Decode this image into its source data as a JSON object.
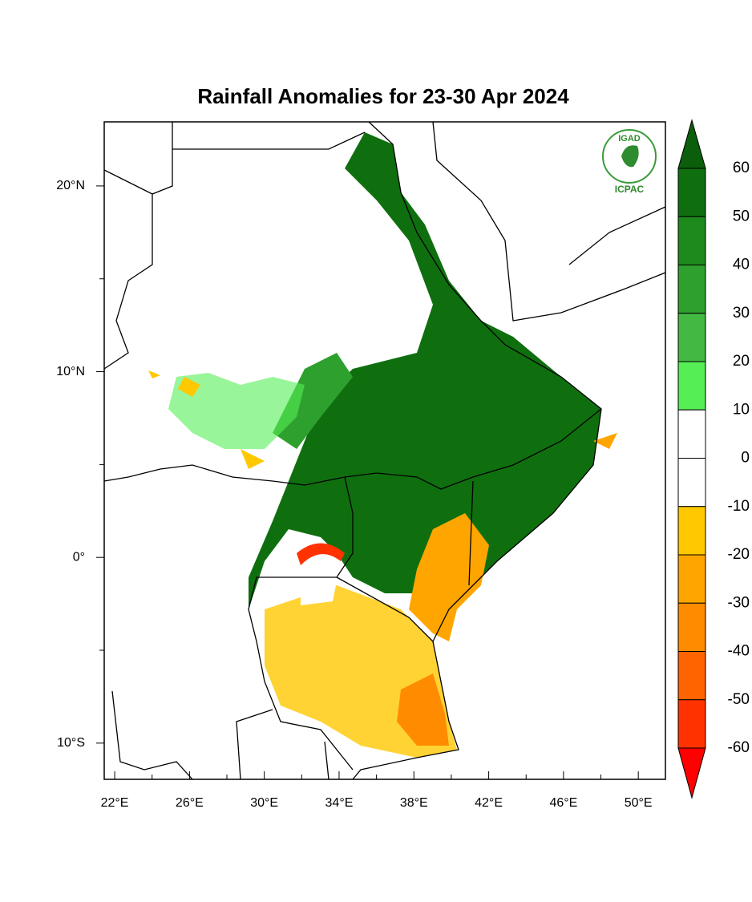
{
  "title": "Rainfall Anomalies for 23-30 Apr 2024",
  "map": {
    "xlim": [
      21.44,
      51.45
    ],
    "ylim": [
      -11.95,
      23.45
    ],
    "xticks": [
      {
        "value": 22,
        "label": "22°E"
      },
      {
        "value": 26,
        "label": "26°E"
      },
      {
        "value": 30,
        "label": "30°E"
      },
      {
        "value": 34,
        "label": "34°E"
      },
      {
        "value": 38,
        "label": "38°E"
      },
      {
        "value": 42,
        "label": "42°E"
      },
      {
        "value": 46,
        "label": "46°E"
      },
      {
        "value": 50,
        "label": "50°E"
      }
    ],
    "yticks": [
      {
        "value": 20,
        "label": "20°N"
      },
      {
        "value": 10,
        "label": "10°N"
      },
      {
        "value": 0,
        "label": "0°"
      },
      {
        "value": -10,
        "label": "10°S"
      }
    ]
  },
  "colorbar": {
    "levels": [
      60,
      50,
      40,
      30,
      20,
      10,
      0,
      -10,
      -20,
      -30,
      -40,
      -50,
      -60
    ],
    "colors": [
      "#0b5e0b",
      "#0f6f0f",
      "#1e8a1e",
      "#2ea02e",
      "#43b843",
      "#55ee55",
      "#ffffff",
      "#ffffff",
      "#ffc800",
      "#ffa500",
      "#ff8c00",
      "#ff6400",
      "#ff3200",
      "#ff0000"
    ]
  },
  "logo": {
    "top": "IGAD",
    "bottom": "ICPAC"
  }
}
